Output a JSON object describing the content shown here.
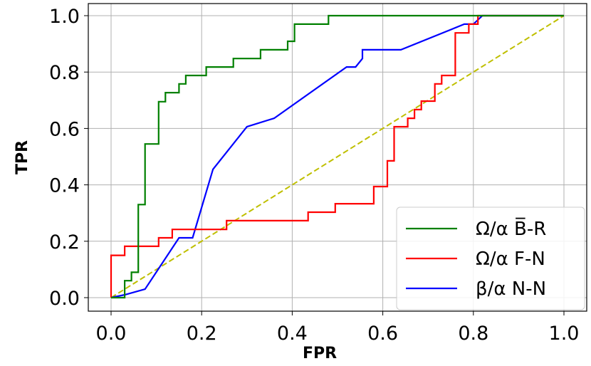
{
  "chart_data": {
    "type": "line",
    "xlabel": "FPR",
    "ylabel": "TPR",
    "xlim": [
      0,
      1
    ],
    "ylim": [
      0,
      1
    ],
    "xticks": [
      "0.0",
      "0.2",
      "0.4",
      "0.6",
      "0.8",
      "1.0"
    ],
    "yticks": [
      "0.0",
      "0.2",
      "0.4",
      "0.6",
      "0.8",
      "1.0"
    ],
    "grid": true,
    "legend_position": "lower-right",
    "series": [
      {
        "name": "Ω/α B̅-R",
        "color": "#008000",
        "points": [
          [
            0,
            0
          ],
          [
            0.03,
            0
          ],
          [
            0.03,
            0.06
          ],
          [
            0.045,
            0.06
          ],
          [
            0.045,
            0.09
          ],
          [
            0.06,
            0.09
          ],
          [
            0.06,
            0.33
          ],
          [
            0.075,
            0.33
          ],
          [
            0.075,
            0.545
          ],
          [
            0.105,
            0.545
          ],
          [
            0.105,
            0.695
          ],
          [
            0.12,
            0.695
          ],
          [
            0.12,
            0.727
          ],
          [
            0.15,
            0.727
          ],
          [
            0.15,
            0.758
          ],
          [
            0.165,
            0.758
          ],
          [
            0.165,
            0.788
          ],
          [
            0.21,
            0.788
          ],
          [
            0.21,
            0.818
          ],
          [
            0.27,
            0.818
          ],
          [
            0.27,
            0.848
          ],
          [
            0.33,
            0.848
          ],
          [
            0.33,
            0.879
          ],
          [
            0.39,
            0.879
          ],
          [
            0.39,
            0.909
          ],
          [
            0.405,
            0.909
          ],
          [
            0.405,
            0.97
          ],
          [
            0.48,
            0.97
          ],
          [
            0.48,
            1.0
          ],
          [
            0.82,
            1.0
          ],
          [
            1.0,
            1.0
          ]
        ]
      },
      {
        "name": "Ω/α F-N",
        "color": "#ff0000",
        "points": [
          [
            0,
            0
          ],
          [
            0,
            0.15
          ],
          [
            0.03,
            0.15
          ],
          [
            0.03,
            0.182
          ],
          [
            0.105,
            0.182
          ],
          [
            0.105,
            0.212
          ],
          [
            0.135,
            0.212
          ],
          [
            0.135,
            0.242
          ],
          [
            0.255,
            0.242
          ],
          [
            0.255,
            0.273
          ],
          [
            0.435,
            0.273
          ],
          [
            0.435,
            0.303
          ],
          [
            0.495,
            0.303
          ],
          [
            0.495,
            0.333
          ],
          [
            0.58,
            0.333
          ],
          [
            0.58,
            0.394
          ],
          [
            0.61,
            0.394
          ],
          [
            0.61,
            0.485
          ],
          [
            0.625,
            0.485
          ],
          [
            0.625,
            0.606
          ],
          [
            0.655,
            0.606
          ],
          [
            0.655,
            0.636
          ],
          [
            0.67,
            0.636
          ],
          [
            0.67,
            0.667
          ],
          [
            0.685,
            0.667
          ],
          [
            0.685,
            0.697
          ],
          [
            0.715,
            0.697
          ],
          [
            0.715,
            0.758
          ],
          [
            0.73,
            0.758
          ],
          [
            0.73,
            0.788
          ],
          [
            0.76,
            0.788
          ],
          [
            0.76,
            0.939
          ],
          [
            0.79,
            0.939
          ],
          [
            0.79,
            0.97
          ],
          [
            0.81,
            0.97
          ],
          [
            0.81,
            1.0
          ],
          [
            1.0,
            1.0
          ]
        ]
      },
      {
        "name": "β/α N-N",
        "color": "#0000ff",
        "points": [
          [
            0,
            0
          ],
          [
            0.03,
            0.01
          ],
          [
            0.075,
            0.03
          ],
          [
            0.15,
            0.212
          ],
          [
            0.18,
            0.212
          ],
          [
            0.225,
            0.455
          ],
          [
            0.3,
            0.606
          ],
          [
            0.36,
            0.636
          ],
          [
            0.52,
            0.818
          ],
          [
            0.54,
            0.818
          ],
          [
            0.555,
            0.848
          ],
          [
            0.555,
            0.879
          ],
          [
            0.64,
            0.879
          ],
          [
            0.78,
            0.97
          ],
          [
            0.8,
            0.97
          ],
          [
            0.82,
            1.0
          ],
          [
            1.0,
            1.0
          ]
        ]
      },
      {
        "color": "#bfbf00",
        "style": "dashed",
        "points": [
          [
            0,
            0
          ],
          [
            1,
            1
          ]
        ]
      }
    ]
  }
}
